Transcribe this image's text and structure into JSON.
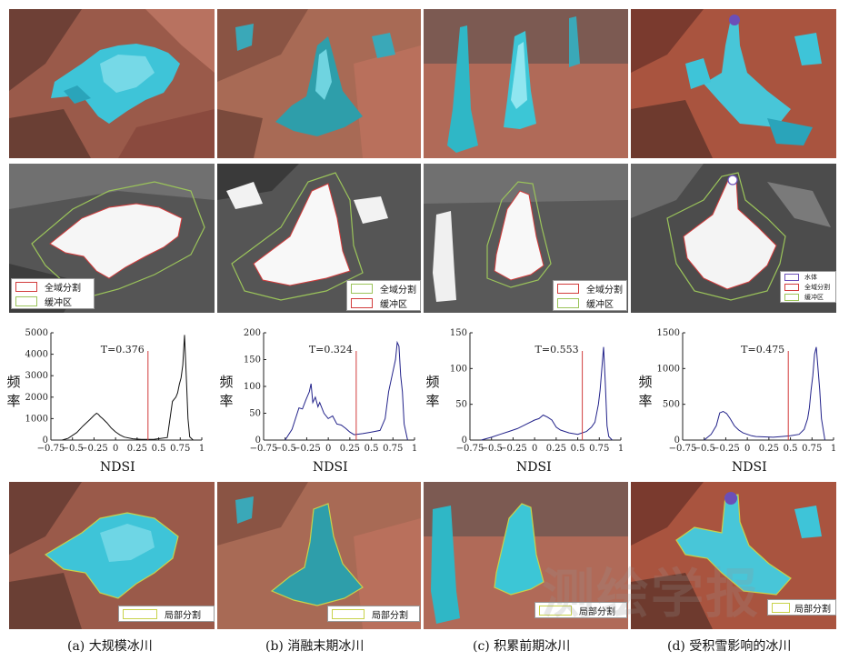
{
  "legend_labels": {
    "full_seg": "全域分割",
    "buffer": "缓冲区",
    "water": "水体",
    "local_seg": "局部分割"
  },
  "histograms": [
    {
      "id": "a",
      "threshold_label": "T=0.376",
      "threshold": 0.376,
      "yticks": [
        "0",
        "1000",
        "2000",
        "3000",
        "4000",
        "5000"
      ],
      "xticks": [
        "−0.75",
        "−0.5",
        "−0.25",
        "0",
        "0.25",
        "0.5",
        "0.75",
        "1"
      ],
      "ylim": [
        0,
        5000
      ],
      "line_color": "#111111",
      "x": [
        -0.62,
        -0.55,
        -0.45,
        -0.38,
        -0.3,
        -0.25,
        -0.22,
        -0.2,
        -0.18,
        -0.15,
        -0.1,
        -0.05,
        0,
        0.05,
        0.1,
        0.2,
        0.3,
        0.45,
        0.6,
        0.66,
        0.7,
        0.72,
        0.74,
        0.76,
        0.78,
        0.8,
        0.82,
        0.84,
        0.86,
        0.9
      ],
      "y": [
        0,
        80,
        350,
        650,
        950,
        1150,
        1250,
        1200,
        1100,
        1000,
        800,
        560,
        380,
        240,
        140,
        60,
        30,
        40,
        120,
        1800,
        2000,
        2200,
        2600,
        2900,
        3500,
        4900,
        3000,
        1000,
        150,
        0
      ]
    },
    {
      "id": "b",
      "threshold_label": "T=0.324",
      "threshold": 0.324,
      "yticks": [
        "0",
        "50",
        "100",
        "150",
        "200"
      ],
      "xticks": [
        "−0.75",
        "−0.5",
        "−0.25",
        "0",
        "0.25",
        "0.5",
        "0.75",
        "1"
      ],
      "ylim": [
        0,
        200
      ],
      "line_color": "#22228a",
      "x": [
        -0.5,
        -0.42,
        -0.38,
        -0.34,
        -0.3,
        -0.26,
        -0.22,
        -0.2,
        -0.18,
        -0.15,
        -0.12,
        -0.1,
        -0.05,
        0,
        0.05,
        0.1,
        0.15,
        0.2,
        0.25,
        0.3,
        0.4,
        0.5,
        0.6,
        0.66,
        0.7,
        0.74,
        0.78,
        0.8,
        0.82,
        0.84,
        0.86,
        0.88,
        0.92
      ],
      "y": [
        0,
        20,
        40,
        60,
        58,
        75,
        90,
        105,
        70,
        80,
        62,
        70,
        50,
        40,
        45,
        30,
        28,
        22,
        15,
        10,
        12,
        15,
        18,
        40,
        90,
        120,
        150,
        182,
        175,
        120,
        90,
        30,
        0
      ]
    },
    {
      "id": "c",
      "threshold_label": "T=0.553",
      "threshold": 0.553,
      "yticks": [
        "0",
        "50",
        "100",
        "150"
      ],
      "xticks": [
        "−0.75",
        "−0.5",
        "−0.25",
        "0",
        "0.25",
        "0.5",
        "0.75",
        "1"
      ],
      "ylim": [
        0,
        150
      ],
      "line_color": "#22228a",
      "x": [
        -0.62,
        -0.5,
        -0.4,
        -0.3,
        -0.2,
        -0.1,
        0,
        0.05,
        0.1,
        0.15,
        0.2,
        0.25,
        0.3,
        0.4,
        0.5,
        0.6,
        0.66,
        0.7,
        0.74,
        0.76,
        0.78,
        0.8,
        0.82,
        0.84,
        0.86,
        0.9
      ],
      "y": [
        0,
        4,
        8,
        12,
        16,
        22,
        28,
        30,
        35,
        32,
        28,
        18,
        14,
        10,
        8,
        12,
        18,
        25,
        50,
        70,
        100,
        130,
        80,
        20,
        5,
        0
      ]
    },
    {
      "id": "d",
      "threshold_label": "T=0.475",
      "threshold": 0.475,
      "yticks": [
        "0",
        "500",
        "1000",
        "1500"
      ],
      "xticks": [
        "−0.75",
        "−0.5",
        "−0.25",
        "0",
        "0.25",
        "0.5",
        "0.75",
        "1"
      ],
      "ylim": [
        0,
        1500
      ],
      "line_color": "#22228a",
      "x": [
        -0.5,
        -0.42,
        -0.36,
        -0.32,
        -0.28,
        -0.24,
        -0.2,
        -0.15,
        -0.1,
        -0.05,
        0,
        0.05,
        0.1,
        0.2,
        0.3,
        0.4,
        0.5,
        0.6,
        0.66,
        0.7,
        0.72,
        0.74,
        0.76,
        0.78,
        0.8,
        0.82,
        0.84,
        0.86,
        0.9
      ],
      "y": [
        0,
        80,
        200,
        380,
        400,
        370,
        300,
        200,
        140,
        100,
        80,
        60,
        50,
        45,
        40,
        50,
        60,
        80,
        150,
        300,
        450,
        700,
        900,
        1200,
        1300,
        1000,
        700,
        300,
        0
      ]
    }
  ],
  "ylabel": "频\n率",
  "ylabel_chars": [
    "频",
    "率"
  ],
  "xlabel": "NDSI",
  "captions": [
    "(a) 大规模冰川",
    "(b) 消融末期冰川",
    "(c) 积累前期冰川",
    "(d) 受积雪影响的冰川"
  ],
  "watermark": "测绘学报",
  "colors": {
    "glacier_cyan": "#3ec4d8",
    "rock_red": "#b65a47",
    "full_seg_red": "#d23c3c",
    "buffer_green": "#9bc45a",
    "local_seg_yellow": "#c8d24a",
    "water_purple": "#6b4fb8",
    "threshold_red": "#d23c3c"
  }
}
